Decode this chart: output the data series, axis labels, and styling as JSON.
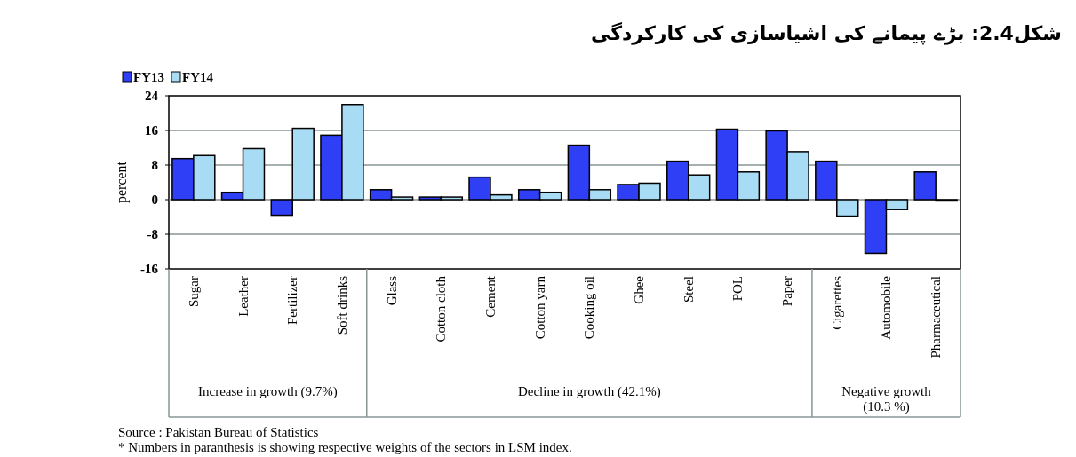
{
  "chart_data": {
    "type": "bar",
    "title": "شکل2.4: بڑے پیمانے کی اشیاسازی کی کارکردگی",
    "ylabel": "percent",
    "categories": [
      "Sugar",
      "Leather",
      "Fertilizer",
      "Soft drinks",
      "Glass",
      "Cotton cloth",
      "Cement",
      "Cotton yarn",
      "Cooking oil",
      "Ghee",
      "Steel",
      "POL",
      "Paper",
      "Cigarettes",
      "Automobile",
      "Pharmaceutical"
    ],
    "series": [
      {
        "name": "FY13",
        "color": "#2f3ff5",
        "values": [
          9.5,
          1.7,
          -3.6,
          14.9,
          2.3,
          0.6,
          5.2,
          2.3,
          12.6,
          3.5,
          8.9,
          16.3,
          15.9,
          8.9,
          -12.4,
          6.4
        ]
      },
      {
        "name": "FY14",
        "color": "#a8dcf5",
        "values": [
          10.2,
          11.8,
          16.5,
          22.0,
          0.6,
          0.6,
          1.1,
          1.7,
          2.3,
          3.8,
          5.7,
          6.4,
          11.1,
          -3.8,
          -2.3,
          -0.3
        ]
      }
    ],
    "ylim": [
      -16,
      24
    ],
    "yticks": [
      -16,
      -8,
      0,
      8,
      16,
      24
    ],
    "grid": "y",
    "legend": "top left",
    "annotations": [
      "Increase in growth (9.7%)",
      "Decline in growth (42.1%)",
      "Negative growth (10.3 %)",
      "Source : Pakistan Bureau of Statistics",
      "* Numbers in paranthesis is showing respective weights of the sectors in LSM index."
    ]
  }
}
